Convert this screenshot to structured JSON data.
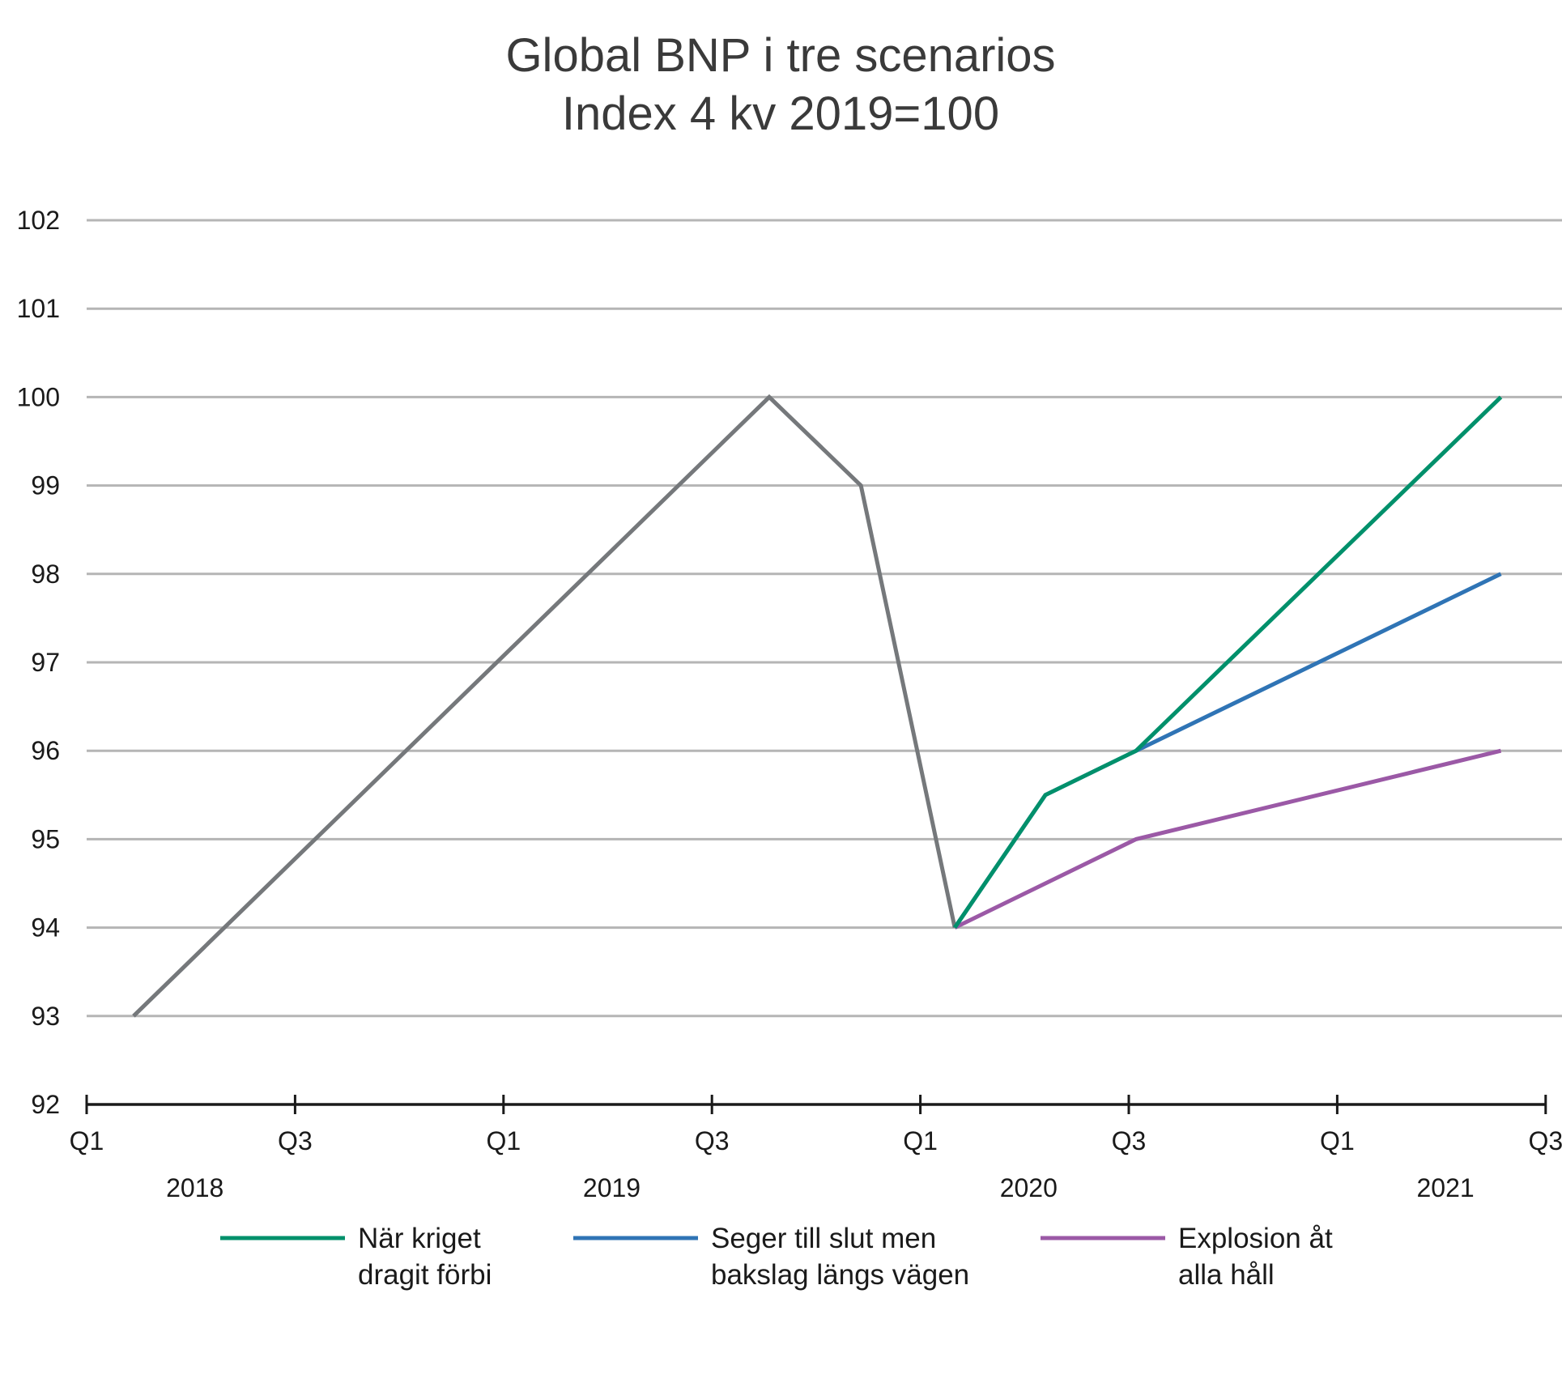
{
  "chart_data": {
    "type": "line",
    "title": "Global BNP i tre scenarios",
    "subtitle": "Index 4 kv 2019=100",
    "xlabel": "",
    "ylabel": "",
    "ylim": [
      92,
      102
    ],
    "yticks": [
      102,
      101,
      100,
      99,
      98,
      97,
      96,
      95,
      94,
      93,
      92
    ],
    "grid": true,
    "x_tick_labels": [
      "Q1",
      "Q3",
      "Q1",
      "Q3",
      "Q1",
      "Q3",
      "Q1",
      "Q3"
    ],
    "x_tick_positions": [
      0,
      2,
      4,
      6,
      8,
      10,
      12,
      14
    ],
    "years": [
      {
        "label": "2018",
        "x": 1.0
      },
      {
        "label": "2019",
        "x": 5.0
      },
      {
        "label": "2020",
        "x": 9.0
      },
      {
        "label": "2021",
        "x": 13.0
      }
    ],
    "series": [
      {
        "name": "",
        "color": "#75787b",
        "points": [
          [
            0.45,
            93
          ],
          [
            6.55,
            100
          ],
          [
            7.43,
            99
          ],
          [
            8.33,
            94
          ]
        ]
      },
      {
        "name": "När kriget dragit förbi",
        "color": "#00906b",
        "points": [
          [
            8.33,
            94
          ],
          [
            9.2,
            95.5
          ],
          [
            10.07,
            96
          ],
          [
            13.57,
            100
          ]
        ]
      },
      {
        "name": "Seger till slut men bakslag längs vägen",
        "color": "#2f74b5",
        "points": [
          [
            8.33,
            94
          ],
          [
            9.2,
            95.5
          ],
          [
            10.07,
            96
          ],
          [
            13.57,
            98
          ]
        ]
      },
      {
        "name": "Explosion åt alla håll",
        "color": "#9b59a6",
        "points": [
          [
            8.33,
            94
          ],
          [
            10.07,
            95
          ],
          [
            13.57,
            96
          ]
        ]
      }
    ],
    "legend": {
      "placement": "bottom",
      "entries": [
        {
          "lines": [
            "När kriget",
            "dragit förbi"
          ],
          "color": "#00906b"
        },
        {
          "lines": [
            "Seger till slut men",
            "bakslag längs vägen"
          ],
          "color": "#2f74b5"
        },
        {
          "lines": [
            "Explosion åt",
            "alla håll"
          ],
          "color": "#9b59a6"
        }
      ]
    }
  }
}
